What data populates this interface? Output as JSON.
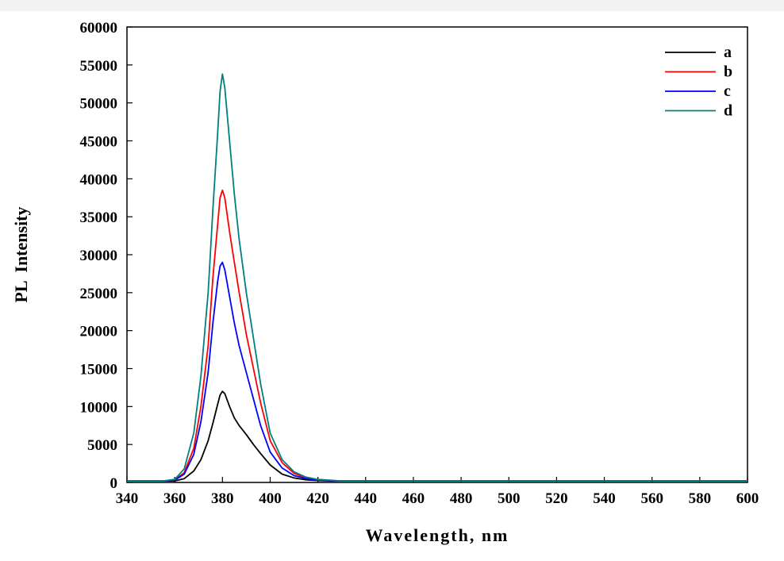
{
  "chart_data": {
    "type": "line",
    "xlabel": "Wavelength, nm",
    "ylabel": "PL  Intensity",
    "xlim": [
      340,
      600
    ],
    "ylim": [
      0,
      60000
    ],
    "x_ticks": [
      340,
      360,
      380,
      400,
      420,
      440,
      460,
      480,
      500,
      520,
      540,
      560,
      580,
      600
    ],
    "y_ticks": [
      0,
      5000,
      10000,
      15000,
      20000,
      25000,
      30000,
      35000,
      40000,
      45000,
      50000,
      55000,
      60000
    ],
    "grid": false,
    "legend_position": "top-right",
    "x": [
      340,
      355,
      360,
      364,
      368,
      371,
      374,
      376,
      378,
      379,
      380,
      381,
      383,
      385,
      387,
      390,
      393,
      396,
      400,
      405,
      410,
      415,
      420,
      425,
      430,
      440,
      460,
      500,
      600
    ],
    "series": [
      {
        "name": "a",
        "color": "#000000",
        "values": [
          200,
          200,
          200,
          500,
          1500,
          3000,
          5500,
          7800,
          10300,
          11500,
          12000,
          11700,
          10000,
          8500,
          7500,
          6300,
          5000,
          3800,
          2300,
          1100,
          600,
          350,
          250,
          200,
          200,
          200,
          200,
          200,
          200
        ]
      },
      {
        "name": "b",
        "color": "#ff0000",
        "values": [
          200,
          200,
          300,
          1300,
          4500,
          10000,
          18000,
          27000,
          34000,
          37500,
          38500,
          37500,
          33000,
          29000,
          25000,
          19500,
          15000,
          10500,
          5500,
          2600,
          1200,
          600,
          350,
          250,
          200,
          200,
          200,
          200,
          200
        ]
      },
      {
        "name": "c",
        "color": "#0000ff",
        "values": [
          200,
          200,
          300,
          1100,
          3700,
          8000,
          14500,
          21000,
          26500,
          28500,
          29000,
          28000,
          24500,
          21000,
          18000,
          14500,
          11000,
          7500,
          4000,
          1900,
          900,
          500,
          300,
          250,
          200,
          200,
          200,
          200,
          200
        ]
      },
      {
        "name": "d",
        "color": "#008080",
        "values": [
          200,
          200,
          400,
          1800,
          6500,
          14000,
          25000,
          36000,
          46000,
          51500,
          53800,
          52000,
          45000,
          38000,
          32000,
          25000,
          19000,
          13000,
          6500,
          3000,
          1400,
          700,
          400,
          300,
          200,
          200,
          200,
          200,
          200
        ]
      }
    ]
  }
}
